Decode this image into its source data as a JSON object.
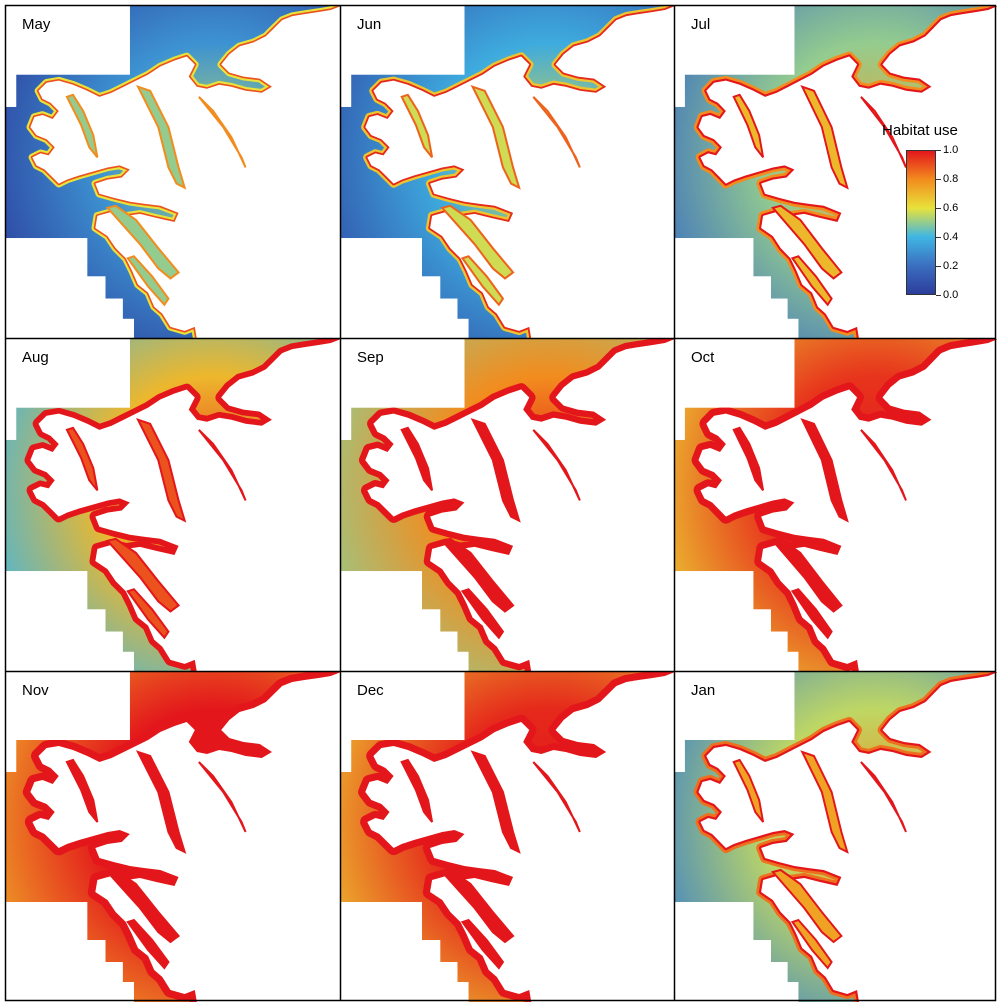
{
  "panels": [
    {
      "id": "may",
      "label": "May",
      "level": 0.05
    },
    {
      "id": "jun",
      "label": "Jun",
      "level": 0.12
    },
    {
      "id": "jul",
      "label": "Jul",
      "level": 0.25
    },
    {
      "id": "aug",
      "label": "Aug",
      "level": 0.45
    },
    {
      "id": "sep",
      "label": "Sep",
      "level": 0.55
    },
    {
      "id": "oct",
      "label": "Oct",
      "level": 0.7
    },
    {
      "id": "nov",
      "label": "Nov",
      "level": 0.78
    },
    {
      "id": "dec",
      "label": "Dec",
      "level": 0.72
    },
    {
      "id": "jan",
      "label": "Jan",
      "level": 0.3
    }
  ],
  "legend": {
    "title": "Habitat use",
    "ticks": [
      "0.0",
      "0.2",
      "0.4",
      "0.6",
      "0.8",
      "1.0"
    ],
    "colors": {
      "v0": "#2c3d9c",
      "v02": "#3b6fc0",
      "v04": "#3fb6e3",
      "v06": "#e8e23a",
      "v08": "#f28c1e",
      "v10": "#e3171b"
    }
  }
}
